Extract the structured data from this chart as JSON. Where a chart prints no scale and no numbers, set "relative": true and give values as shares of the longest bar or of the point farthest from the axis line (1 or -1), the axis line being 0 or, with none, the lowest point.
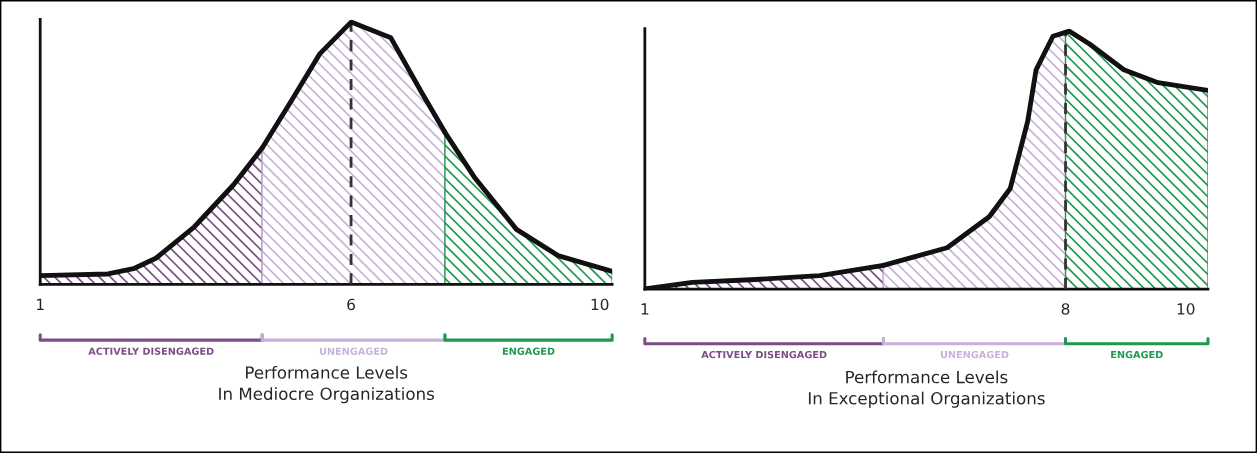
{
  "chart_data": [
    {
      "type": "area",
      "relative": true,
      "xlabel": "Performance Levels\nIn Mediocre Organizations",
      "series": [
        {
          "name": "ACTIVELY DISENGAGED",
          "color": "#7b4f86",
          "x": [
            1,
            2.09,
            2.5,
            2.86,
            3.48,
            4.11,
            4.57
          ],
          "values": [
            0.034,
            0.04,
            0.06,
            0.1,
            0.22,
            0.38,
            0.52
          ]
        },
        {
          "name": "UNENGAGED",
          "color": "#c7b2da",
          "x": [
            4.57,
            5.04,
            5.5,
            6,
            6.64,
            7.14,
            7.51
          ],
          "values": [
            0.52,
            0.7,
            0.88,
            1.0,
            0.94,
            0.73,
            0.58
          ]
        },
        {
          "name": "ENGAGED",
          "color": "#1e9950",
          "x": [
            7.51,
            7.98,
            8.66,
            9.33,
            10.2
          ],
          "values": [
            0.58,
            0.41,
            0.21,
            0.11,
            0.05
          ]
        }
      ],
      "xlim": [
        1,
        10.2
      ],
      "xticks": [
        1,
        6,
        10
      ],
      "ref_lines": [
        {
          "axis": "x",
          "value": 6,
          "line_style": "dashed",
          "color": "#333333"
        }
      ]
    },
    {
      "type": "area",
      "relative": true,
      "xlabel": "Performance Levels\nIn Exceptional Organizations",
      "series": [
        {
          "name": "ACTIVELY DISENGAGED",
          "color": "#7b4f86",
          "x": [
            1,
            1.79,
            2.85,
            3.91,
            4.97
          ],
          "values": [
            0,
            0.026,
            0.037,
            0.052,
            0.092
          ]
        },
        {
          "name": "UNENGAGED",
          "color": "#c7b2da",
          "x": [
            4.97,
            6.03,
            6.73,
            7.08,
            7.37,
            7.51,
            7.79,
            8
          ],
          "values": [
            0.092,
            0.16,
            0.28,
            0.39,
            0.65,
            0.85,
            0.98,
            0.995
          ]
        },
        {
          "name": "ENGAGED",
          "color": "#1e9950",
          "x": [
            8,
            8.06,
            8.4,
            8.97,
            9.54,
            10.37
          ],
          "values": [
            0.995,
            1.0,
            0.95,
            0.85,
            0.8,
            0.77
          ]
        }
      ],
      "xlim": [
        1,
        10.37
      ],
      "xticks": [
        1,
        8,
        10
      ],
      "ref_lines": [
        {
          "axis": "x",
          "value": 8,
          "line_style": "dashed",
          "color": "#333333"
        }
      ]
    }
  ]
}
